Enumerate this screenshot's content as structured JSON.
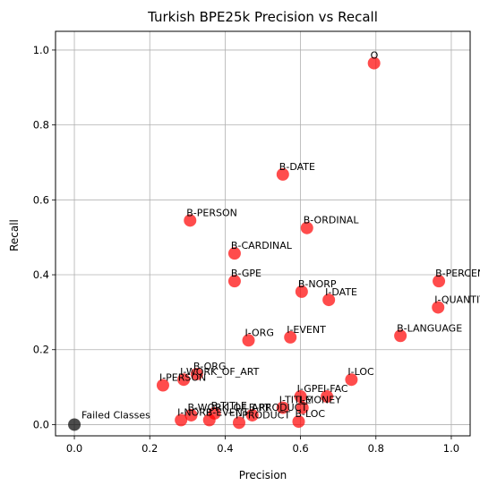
{
  "chart_data": {
    "type": "scatter",
    "title": "Turkish BPE25k Precision vs Recall",
    "xlabel": "Precision",
    "ylabel": "Recall",
    "xlim": [
      -0.05,
      1.05
    ],
    "ylim": [
      -0.03,
      1.05
    ],
    "xticks": [
      0.0,
      0.2,
      0.4,
      0.6,
      0.8,
      1.0
    ],
    "yticks": [
      0.0,
      0.2,
      0.4,
      0.6,
      0.8,
      1.0
    ],
    "xtick_labels": [
      "0.0",
      "0.2",
      "0.4",
      "0.6",
      "0.8",
      "1.0"
    ],
    "ytick_labels": [
      "0.0",
      "0.2",
      "0.4",
      "0.6",
      "0.8",
      "1.0"
    ],
    "grid": true,
    "colors": {
      "point": "#ff0000",
      "failed_point": "#000000",
      "grid": "#b0b0b0"
    },
    "points": [
      {
        "label": "O",
        "x": 0.795,
        "y": 0.965
      },
      {
        "label": "B-DATE",
        "x": 0.553,
        "y": 0.668
      },
      {
        "label": "B-PERSON",
        "x": 0.307,
        "y": 0.545
      },
      {
        "label": "B-ORDINAL",
        "x": 0.617,
        "y": 0.525
      },
      {
        "label": "B-CARDINAL",
        "x": 0.425,
        "y": 0.457
      },
      {
        "label": "B-GPE",
        "x": 0.425,
        "y": 0.383
      },
      {
        "label": "B-NORP",
        "x": 0.603,
        "y": 0.355
      },
      {
        "label": "B-PERCENT",
        "x": 0.967,
        "y": 0.383
      },
      {
        "label": "I-DATE",
        "x": 0.675,
        "y": 0.333
      },
      {
        "label": "I-QUANTITY",
        "x": 0.965,
        "y": 0.313
      },
      {
        "label": "B-LANGUAGE",
        "x": 0.865,
        "y": 0.237
      },
      {
        "label": "I-ORG",
        "x": 0.462,
        "y": 0.225
      },
      {
        "label": "I-EVENT",
        "x": 0.573,
        "y": 0.233
      },
      {
        "label": "B-ORG",
        "x": 0.325,
        "y": 0.135
      },
      {
        "label": "I-WORK_OF_ART",
        "x": 0.29,
        "y": 0.12
      },
      {
        "label": "I-PERSON",
        "x": 0.235,
        "y": 0.105
      },
      {
        "label": "I-LOC",
        "x": 0.735,
        "y": 0.12
      },
      {
        "label": "I-GPE",
        "x": 0.6,
        "y": 0.075
      },
      {
        "label": "I-FAC",
        "x": 0.67,
        "y": 0.075
      },
      {
        "label": "I-TITLE",
        "x": 0.553,
        "y": 0.045
      },
      {
        "label": "I-MONEY",
        "x": 0.605,
        "y": 0.045
      },
      {
        "label": "B-TITLE",
        "x": 0.372,
        "y": 0.03
      },
      {
        "label": "B-WORK_OF_ART",
        "x": 0.31,
        "y": 0.025
      },
      {
        "label": "B-PRODUCT",
        "x": 0.472,
        "y": 0.025
      },
      {
        "label": "I-NORP",
        "x": 0.283,
        "y": 0.012
      },
      {
        "label": "B-EVENT",
        "x": 0.358,
        "y": 0.012
      },
      {
        "label": "I-PRODUCT",
        "x": 0.437,
        "y": 0.005
      },
      {
        "label": "B-LOC",
        "x": 0.595,
        "y": 0.008
      }
    ],
    "failed_point": {
      "label": "Failed Classes",
      "x": 0.0,
      "y": 0.0
    }
  }
}
